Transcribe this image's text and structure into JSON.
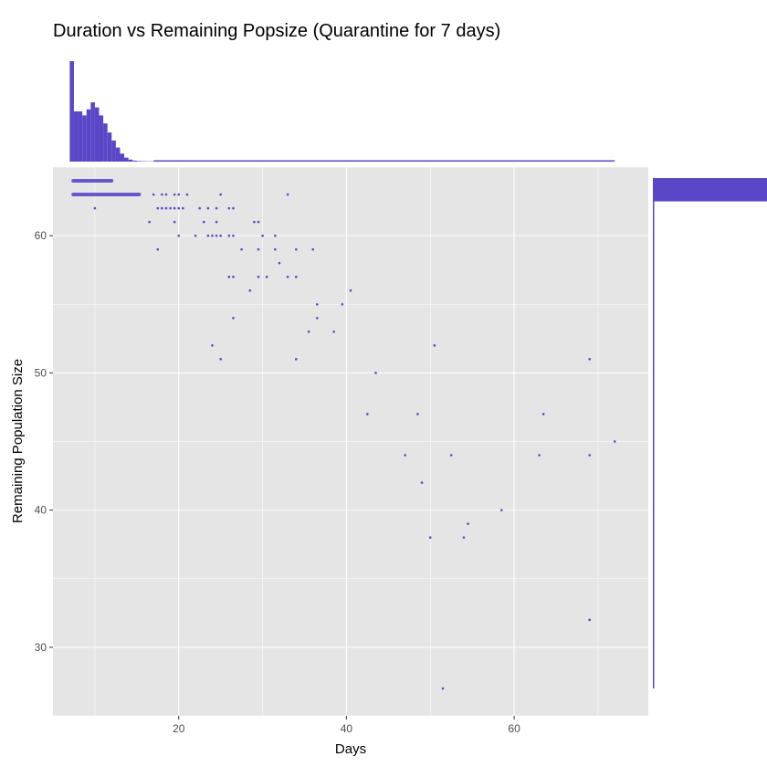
{
  "chart_data": {
    "type": "scatter",
    "title": "Duration vs Remaining Popsize (Quarantine for 7 days)",
    "xlabel": "Days",
    "ylabel": "Remaining Population Size",
    "xlim": [
      5,
      76
    ],
    "ylim": [
      25,
      65
    ],
    "x_ticks": [
      20,
      40,
      60
    ],
    "y_ticks": [
      30,
      40,
      50,
      60
    ],
    "grid": true,
    "point_color": "#5a47c8",
    "panel_color": "#e5e5e5",
    "grid_color": "#ffffff",
    "marginal_histograms": {
      "top": "Days",
      "right": "Remaining Population Size"
    },
    "points": [
      [
        17.0,
        63
      ],
      [
        18.0,
        63
      ],
      [
        18.5,
        63
      ],
      [
        19.5,
        63
      ],
      [
        20.0,
        63
      ],
      [
        21.0,
        63
      ],
      [
        25.0,
        63
      ],
      [
        33.0,
        63
      ],
      [
        10.0,
        62
      ],
      [
        17.5,
        62
      ],
      [
        18.0,
        62
      ],
      [
        18.5,
        62
      ],
      [
        19.0,
        62
      ],
      [
        19.5,
        62
      ],
      [
        20.0,
        62
      ],
      [
        20.5,
        62
      ],
      [
        22.5,
        62
      ],
      [
        23.5,
        62
      ],
      [
        24.5,
        62
      ],
      [
        26.0,
        62
      ],
      [
        26.5,
        62
      ],
      [
        16.5,
        61
      ],
      [
        19.5,
        61
      ],
      [
        23.0,
        61
      ],
      [
        24.5,
        61
      ],
      [
        29.0,
        61
      ],
      [
        29.5,
        61
      ],
      [
        20.0,
        60
      ],
      [
        22.0,
        60
      ],
      [
        23.5,
        60
      ],
      [
        24.0,
        60
      ],
      [
        24.5,
        60
      ],
      [
        25.0,
        60
      ],
      [
        26.0,
        60
      ],
      [
        26.5,
        60
      ],
      [
        30.0,
        60
      ],
      [
        31.5,
        60
      ],
      [
        17.5,
        59
      ],
      [
        27.5,
        59
      ],
      [
        29.5,
        59
      ],
      [
        31.5,
        59
      ],
      [
        34.0,
        59
      ],
      [
        36.0,
        59
      ],
      [
        32.0,
        58
      ],
      [
        26.0,
        57
      ],
      [
        26.5,
        57
      ],
      [
        29.5,
        57
      ],
      [
        30.5,
        57
      ],
      [
        33.0,
        57
      ],
      [
        34.0,
        57
      ],
      [
        28.5,
        56
      ],
      [
        40.5,
        56
      ],
      [
        36.5,
        55
      ],
      [
        39.5,
        55
      ],
      [
        26.5,
        54
      ],
      [
        36.5,
        54
      ],
      [
        35.5,
        53
      ],
      [
        38.5,
        53
      ],
      [
        24.0,
        52
      ],
      [
        50.5,
        52
      ],
      [
        25.0,
        51
      ],
      [
        34.0,
        51
      ],
      [
        69.0,
        51
      ],
      [
        43.5,
        50
      ],
      [
        42.5,
        47
      ],
      [
        48.5,
        47
      ],
      [
        63.5,
        47
      ],
      [
        72.0,
        45
      ],
      [
        47.0,
        44
      ],
      [
        52.5,
        44
      ],
      [
        63.0,
        44
      ],
      [
        69.0,
        44
      ],
      [
        49.0,
        42
      ],
      [
        58.5,
        40
      ],
      [
        54.5,
        39
      ],
      [
        50.0,
        38
      ],
      [
        54.0,
        38
      ],
      [
        69.0,
        32
      ],
      [
        51.5,
        27
      ]
    ],
    "dense_rows": [
      {
        "y": 64,
        "x_from": 7.2,
        "x_to": 12.2
      },
      {
        "y": 63,
        "x_from": 7.2,
        "x_to": 15.5
      }
    ],
    "x_histogram": {
      "bin_start": 7.0,
      "bin_width": 0.5,
      "counts": [
        1000,
        500,
        500,
        460,
        520,
        590,
        540,
        460,
        380,
        290,
        210,
        140,
        80,
        40,
        20,
        10,
        6,
        4,
        3,
        3
      ]
    },
    "y_histogram": {
      "bins": [
        {
          "y_from": 62.5,
          "y_to": 64.2,
          "count": 1000
        },
        {
          "y_from": 27,
          "y_to": 62.5,
          "count": 2
        }
      ]
    }
  }
}
